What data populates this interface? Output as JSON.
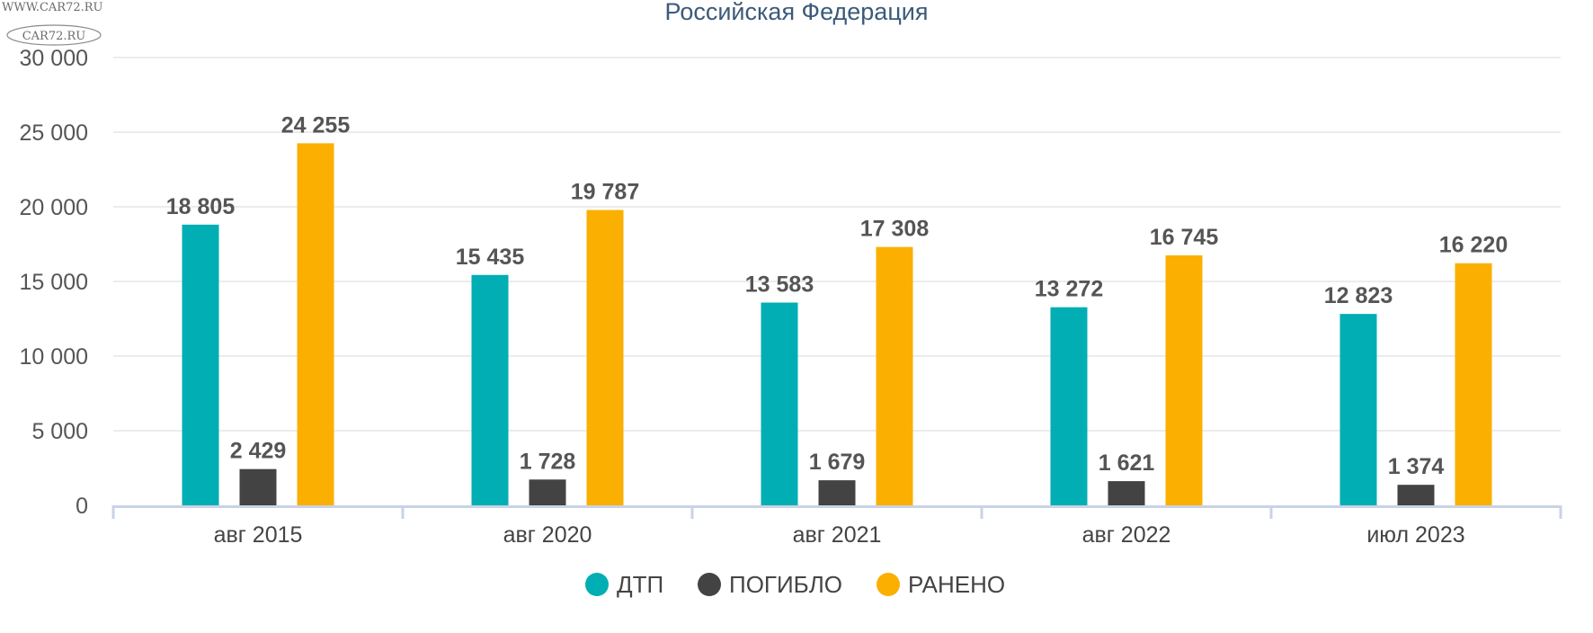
{
  "watermark": {
    "line1": "WWW.CAR72.RU",
    "line2": "CAR72.RU"
  },
  "chart_data": {
    "type": "bar",
    "title": "Российская Федерация",
    "xlabel": "",
    "ylabel": "",
    "ylim": [
      0,
      30000
    ],
    "yticks": [
      0,
      5000,
      10000,
      15000,
      20000,
      25000,
      30000
    ],
    "ytick_labels": [
      "0",
      "5 000",
      "10 000",
      "15 000",
      "20 000",
      "25 000",
      "30 000"
    ],
    "grid": true,
    "legend_position": "bottom",
    "categories": [
      "авг 2015",
      "авг 2020",
      "авг 2021",
      "авг 2022",
      "июл 2023"
    ],
    "series": [
      {
        "name": "ДТП",
        "color": "#00aeb3",
        "values": [
          18805,
          15435,
          13583,
          13272,
          12823
        ],
        "labels": [
          "18 805",
          "15 435",
          "13 583",
          "13 272",
          "12 823"
        ]
      },
      {
        "name": "ПОГИБЛО",
        "color": "#434343",
        "values": [
          2429,
          1728,
          1679,
          1621,
          1374
        ],
        "labels": [
          "2 429",
          "1 728",
          "1 679",
          "1 621",
          "1 374"
        ]
      },
      {
        "name": "РАНЕНО",
        "color": "#fbaf00",
        "values": [
          24255,
          19787,
          17308,
          16745,
          16220
        ],
        "labels": [
          "24 255",
          "19 787",
          "17 308",
          "16 745",
          "16 220"
        ]
      }
    ]
  }
}
